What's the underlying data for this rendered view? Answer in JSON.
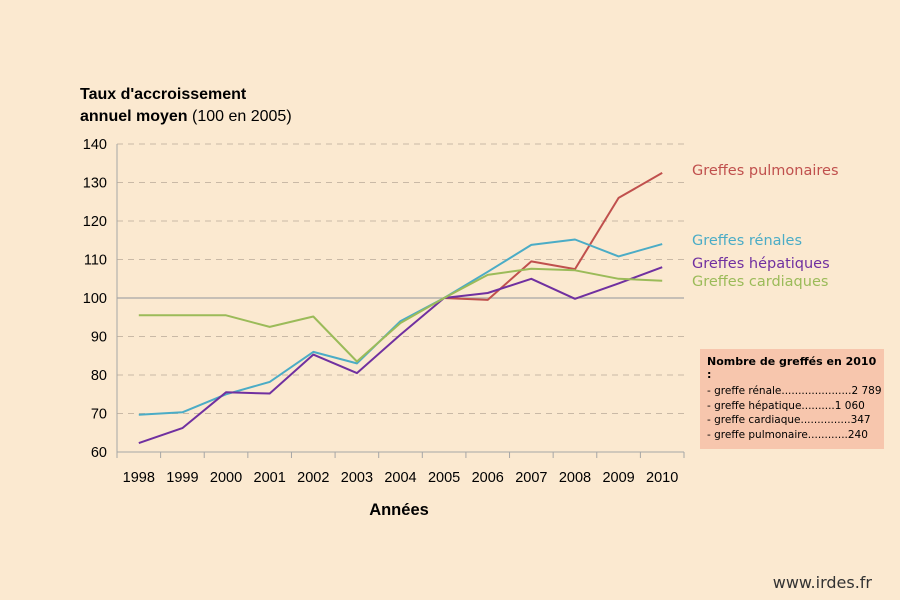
{
  "title": {
    "line1": "Taux d'accroissement",
    "line2_bold": "annuel moyen",
    "line2_rest": " (100 en 2005)"
  },
  "website": "www.irdes.fr",
  "note": {
    "title": "Nombre de greffés en 2010 :",
    "items": [
      "- greffe rénale.....................2 789",
      "- greffe hépatique..........1 060",
      "- greffe cardiaque...............347",
      "- greffe pulmonaire............240"
    ]
  },
  "chart_data": {
    "type": "line",
    "xlabel": "Années",
    "ylabel": "",
    "ylim": [
      60,
      140
    ],
    "yticks": [
      "60",
      "70",
      "80",
      "90",
      "100",
      "110",
      "120",
      "130",
      "140"
    ],
    "categories": [
      "1998",
      "1999",
      "2000",
      "2001",
      "2002",
      "2003",
      "2004",
      "2005",
      "2006",
      "2007",
      "2008",
      "2009",
      "2010"
    ],
    "reference_value": 100,
    "grid": "horizontal dashed",
    "series": [
      {
        "name": "Greffes pulmonaires",
        "color": "#c0504d",
        "x": [
          "2005",
          "2006",
          "2007",
          "2008",
          "2009",
          "2010"
        ],
        "values": [
          100,
          99.5,
          109.5,
          107.5,
          126,
          132.5
        ]
      },
      {
        "name": "Greffes rénales",
        "color": "#4bacc6",
        "x": [
          "1998",
          "1999",
          "2000",
          "2001",
          "2002",
          "2003",
          "2004",
          "2005",
          "2006",
          "2007",
          "2008",
          "2009",
          "2010"
        ],
        "values": [
          69.7,
          70.3,
          75,
          78.2,
          86,
          83,
          94,
          100,
          106.8,
          113.8,
          115.2,
          110.8,
          114
        ]
      },
      {
        "name": "Greffes hépatiques",
        "color": "#7030a0",
        "x": [
          "1998",
          "1999",
          "2000",
          "2001",
          "2002",
          "2003",
          "2004",
          "2005",
          "2006",
          "2007",
          "2008",
          "2009",
          "2010"
        ],
        "values": [
          62.3,
          66.2,
          75.5,
          75.2,
          85.3,
          80.5,
          90.5,
          100,
          101.3,
          105,
          99.8,
          103.8,
          108
        ]
      },
      {
        "name": "Greffes cardiaques",
        "color": "#9bbb59",
        "x": [
          "1998",
          "1999",
          "2000",
          "2001",
          "2002",
          "2003",
          "2004",
          "2005",
          "2006",
          "2007",
          "2008",
          "2009",
          "2010"
        ],
        "values": [
          95.5,
          95.5,
          95.5,
          92.5,
          95.2,
          83.5,
          93.5,
          100,
          106,
          107.6,
          107.2,
          105,
          104.5
        ]
      }
    ]
  }
}
